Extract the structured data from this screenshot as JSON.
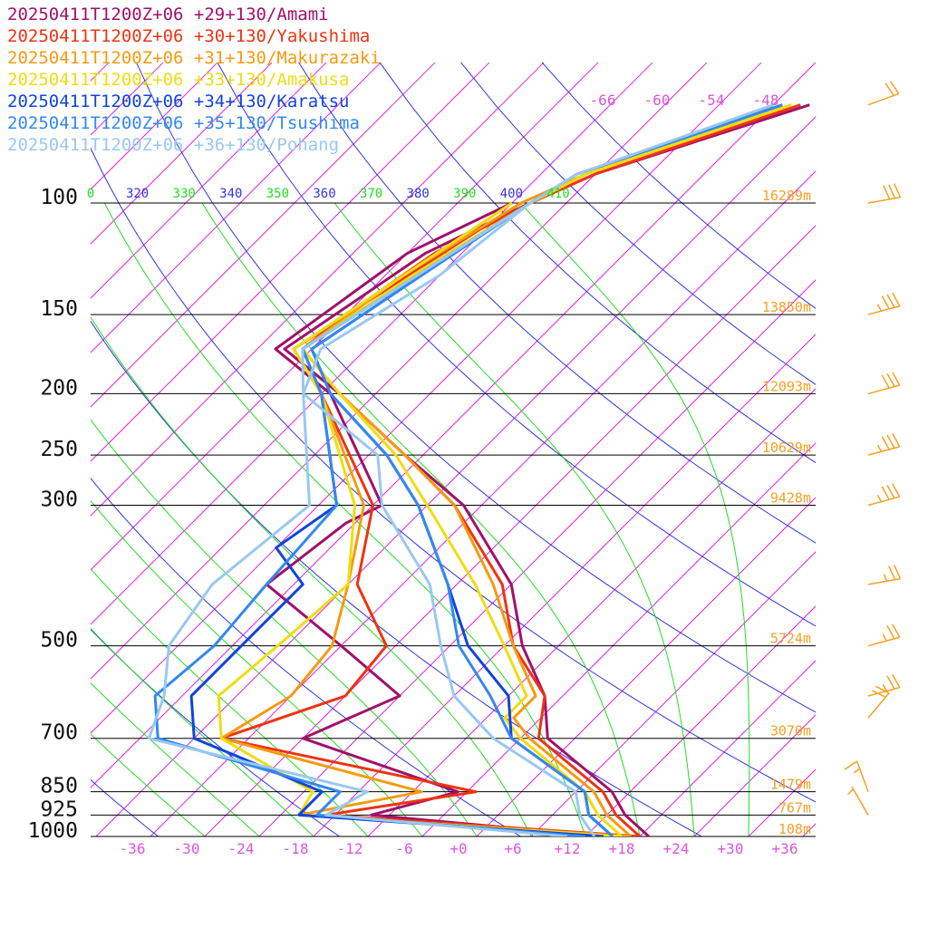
{
  "legend": [
    {
      "label": "20250411T1200Z+06 +29+130/Amami",
      "color": "#a0106a"
    },
    {
      "label": "20250411T1200Z+06 +30+130/Yakushima",
      "color": "#ee3311"
    },
    {
      "label": "20250411T1200Z+06 +31+130/Makurazaki",
      "color": "#f59a10"
    },
    {
      "label": "20250411T1200Z+06 +33+130/Amakusa",
      "color": "#eedd11"
    },
    {
      "label": "20250411T1200Z+06 +34+130/Karatsu",
      "color": "#1144dd"
    },
    {
      "label": "20250411T1200Z+06 +35+130/Tsushima",
      "color": "#3388ee"
    },
    {
      "label": "20250411T1200Z+06 +36+130/Pohang",
      "color": "#99c8f0"
    }
  ],
  "colors": {
    "isotherm": "#e022e0",
    "isotherm_label": "#dd55dd",
    "dry_adiabat": "#3333dd",
    "moist_adiabat": "#22dd22",
    "height_label": "#f5a020",
    "wind_barb": "#f5a020",
    "isobar": "#000000"
  },
  "chart_data": {
    "type": "line",
    "diagram": "skew-T",
    "x_ticks": [
      "-36",
      "-30",
      "-24",
      "-18",
      "-12",
      "-6",
      "+0",
      "+6",
      "+12",
      "+18",
      "+24",
      "+30",
      "+36"
    ],
    "pressure_levels": [
      "100",
      "150",
      "200",
      "250",
      "300",
      "500",
      "700",
      "850",
      "925",
      "1000"
    ],
    "height_labels": [
      {
        "p": 100,
        "text": "16289m"
      },
      {
        "p": 150,
        "text": "13850m"
      },
      {
        "p": 200,
        "text": "12093m"
      },
      {
        "p": 250,
        "text": "10629m"
      },
      {
        "p": 300,
        "text": "9428m"
      },
      {
        "p": 500,
        "text": "5724m"
      },
      {
        "p": 700,
        "text": "3070m"
      },
      {
        "p": 850,
        "text": "1479m"
      },
      {
        "p": 925,
        "text": "767m"
      },
      {
        "p": 1000,
        "text": "108m"
      }
    ],
    "upper_isotherm_labels": [
      "-66",
      "-60",
      "-54",
      "-48"
    ],
    "theta_labels": [
      {
        "text": "0",
        "type": "moist"
      },
      {
        "text": "320",
        "type": "dry"
      },
      {
        "text": "330",
        "type": "moist"
      },
      {
        "text": "340",
        "type": "dry"
      },
      {
        "text": "350",
        "type": "moist"
      },
      {
        "text": "360",
        "type": "dry"
      },
      {
        "text": "370",
        "type": "moist"
      },
      {
        "text": "380",
        "type": "dry"
      },
      {
        "text": "390",
        "type": "moist"
      },
      {
        "text": "400",
        "type": "dry"
      },
      {
        "text": "410",
        "type": "moist"
      }
    ],
    "series": [
      {
        "name": "20250411T1200Z+06 +29+130/Amami",
        "temperature": [
          [
            70,
            -42
          ],
          [
            90,
            -58
          ],
          [
            100,
            -62
          ],
          [
            120,
            -68
          ],
          [
            170,
            -73
          ],
          [
            200,
            -62
          ],
          [
            250,
            -48
          ],
          [
            300,
            -36
          ],
          [
            400,
            -22
          ],
          [
            500,
            -14
          ],
          [
            600,
            -6
          ],
          [
            700,
            -1
          ],
          [
            850,
            12
          ],
          [
            925,
            16
          ],
          [
            1000,
            21
          ]
        ],
        "dewpoint": [
          [
            100,
            -64
          ],
          [
            120,
            -70
          ],
          [
            170,
            -74
          ],
          [
            200,
            -63
          ],
          [
            300,
            -45
          ],
          [
            320,
            -47
          ],
          [
            400,
            -49
          ],
          [
            500,
            -34
          ],
          [
            600,
            -22
          ],
          [
            700,
            -28
          ],
          [
            850,
            -5
          ],
          [
            925,
            -12
          ],
          [
            1000,
            16
          ]
        ]
      },
      {
        "name": "20250411T1200Z+06 +30+130/Yakushima",
        "temperature": [
          [
            70,
            -43
          ],
          [
            90,
            -58
          ],
          [
            100,
            -62
          ],
          [
            120,
            -67
          ],
          [
            150,
            -70
          ],
          [
            170,
            -71
          ],
          [
            200,
            -62
          ],
          [
            250,
            -48
          ],
          [
            300,
            -37
          ],
          [
            400,
            -23
          ],
          [
            500,
            -15
          ],
          [
            600,
            -6
          ],
          [
            700,
            -2
          ],
          [
            850,
            11
          ],
          [
            925,
            15
          ],
          [
            1000,
            20
          ]
        ],
        "dewpoint": [
          [
            100,
            -63
          ],
          [
            170,
            -72
          ],
          [
            200,
            -64
          ],
          [
            300,
            -46
          ],
          [
            400,
            -39
          ],
          [
            500,
            -29
          ],
          [
            600,
            -28
          ],
          [
            700,
            -37
          ],
          [
            850,
            -3
          ],
          [
            925,
            -17
          ],
          [
            1000,
            20
          ]
        ]
      },
      {
        "name": "20250411T1200Z+06 +31+130/Makurazaki",
        "temperature": [
          [
            70,
            -44
          ],
          [
            90,
            -59
          ],
          [
            100,
            -63
          ],
          [
            130,
            -68
          ],
          [
            170,
            -71
          ],
          [
            200,
            -62
          ],
          [
            250,
            -48
          ],
          [
            300,
            -37
          ],
          [
            400,
            -24
          ],
          [
            500,
            -15
          ],
          [
            600,
            -7
          ],
          [
            650,
            -7
          ],
          [
            700,
            -3
          ],
          [
            850,
            10
          ],
          [
            925,
            14
          ],
          [
            1000,
            19
          ]
        ],
        "dewpoint": [
          [
            100,
            -64
          ],
          [
            170,
            -72
          ],
          [
            200,
            -64
          ],
          [
            300,
            -47
          ],
          [
            400,
            -40
          ],
          [
            500,
            -35
          ],
          [
            600,
            -34
          ],
          [
            700,
            -37
          ],
          [
            850,
            -9
          ],
          [
            925,
            -20
          ],
          [
            1000,
            19
          ]
        ]
      },
      {
        "name": "20250411T1200Z+06 +33+130/Amakusa",
        "temperature": [
          [
            70,
            -44
          ],
          [
            90,
            -59
          ],
          [
            100,
            -62
          ],
          [
            130,
            -67
          ],
          [
            170,
            -71
          ],
          [
            200,
            -62
          ],
          [
            250,
            -49
          ],
          [
            300,
            -40
          ],
          [
            400,
            -26
          ],
          [
            500,
            -16
          ],
          [
            600,
            -8
          ],
          [
            650,
            -8
          ],
          [
            700,
            -4
          ],
          [
            850,
            9
          ],
          [
            925,
            13
          ],
          [
            1000,
            18
          ]
        ],
        "dewpoint": [
          [
            100,
            -64
          ],
          [
            170,
            -72
          ],
          [
            200,
            -64
          ],
          [
            300,
            -48
          ],
          [
            400,
            -40
          ],
          [
            500,
            -41
          ],
          [
            600,
            -42
          ],
          [
            700,
            -37
          ],
          [
            850,
            -21
          ],
          [
            925,
            -20
          ],
          [
            1000,
            18
          ]
        ]
      },
      {
        "name": "20250411T1200Z+06 +34+130/Karatsu",
        "temperature": [
          [
            70,
            -45
          ],
          [
            90,
            -60
          ],
          [
            100,
            -62
          ],
          [
            130,
            -66
          ],
          [
            170,
            -70
          ],
          [
            200,
            -63
          ],
          [
            250,
            -50
          ],
          [
            300,
            -41
          ],
          [
            400,
            -29
          ],
          [
            500,
            -20
          ],
          [
            600,
            -10
          ],
          [
            700,
            -5
          ],
          [
            850,
            9
          ],
          [
            925,
            12
          ],
          [
            1000,
            17
          ]
        ],
        "dewpoint": [
          [
            100,
            -62
          ],
          [
            170,
            -71
          ],
          [
            200,
            -64
          ],
          [
            300,
            -50
          ],
          [
            350,
            -52
          ],
          [
            400,
            -45
          ],
          [
            500,
            -45
          ],
          [
            600,
            -45
          ],
          [
            700,
            -40
          ],
          [
            850,
            -20
          ],
          [
            925,
            -20
          ],
          [
            1000,
            16
          ]
        ]
      },
      {
        "name": "20250411T1200Z+06 +35+130/Tsushima",
        "temperature": [
          [
            70,
            -45
          ],
          [
            90,
            -60
          ],
          [
            100,
            -62
          ],
          [
            130,
            -66
          ],
          [
            170,
            -70
          ],
          [
            200,
            -63
          ],
          [
            250,
            -50
          ],
          [
            300,
            -41
          ],
          [
            400,
            -29
          ],
          [
            500,
            -21
          ],
          [
            600,
            -12
          ],
          [
            700,
            -5
          ],
          [
            850,
            9
          ],
          [
            925,
            12
          ],
          [
            1000,
            17
          ]
        ],
        "dewpoint": [
          [
            100,
            -62
          ],
          [
            170,
            -71
          ],
          [
            200,
            -64
          ],
          [
            300,
            -50
          ],
          [
            400,
            -49
          ],
          [
            500,
            -48
          ],
          [
            600,
            -49
          ],
          [
            700,
            -44
          ],
          [
            850,
            -18
          ],
          [
            925,
            -18
          ],
          [
            1000,
            14
          ]
        ]
      },
      {
        "name": "20250411T1200Z+06 +36+130/Pohang",
        "temperature": [
          [
            70,
            -46
          ],
          [
            90,
            -60
          ],
          [
            100,
            -62
          ],
          [
            130,
            -64
          ],
          [
            170,
            -69
          ],
          [
            200,
            -66
          ],
          [
            250,
            -51
          ],
          [
            300,
            -45
          ],
          [
            400,
            -31
          ],
          [
            500,
            -23
          ],
          [
            600,
            -16
          ],
          [
            700,
            -7
          ],
          [
            850,
            8
          ],
          [
            925,
            11
          ],
          [
            1000,
            15
          ]
        ],
        "dewpoint": [
          [
            100,
            -62
          ],
          [
            170,
            -71
          ],
          [
            200,
            -66
          ],
          [
            300,
            -53
          ],
          [
            400,
            -55
          ],
          [
            500,
            -53
          ],
          [
            600,
            -48
          ],
          [
            700,
            -45
          ],
          [
            850,
            -15
          ],
          [
            925,
            -17
          ],
          [
            1000,
            12
          ]
        ]
      }
    ],
    "wind_barbs": [
      {
        "p": 70,
        "speed_kt": 20,
        "dir_deg": 250
      },
      {
        "p": 100,
        "speed_kt": 30,
        "dir_deg": 260
      },
      {
        "p": 150,
        "speed_kt": 35,
        "dir_deg": 255
      },
      {
        "p": 200,
        "speed_kt": 30,
        "dir_deg": 255
      },
      {
        "p": 250,
        "speed_kt": 35,
        "dir_deg": 255
      },
      {
        "p": 300,
        "speed_kt": 35,
        "dir_deg": 255
      },
      {
        "p": 400,
        "speed_kt": 25,
        "dir_deg": 260
      },
      {
        "p": 500,
        "speed_kt": 25,
        "dir_deg": 255
      },
      {
        "p": 600,
        "speed_kt": 25,
        "dir_deg": 255
      },
      {
        "p": 650,
        "speed_kt": 20,
        "dir_deg": 220
      },
      {
        "p": 850,
        "speed_kt": 15,
        "dir_deg": 160
      },
      {
        "p": 925,
        "speed_kt": 5,
        "dir_deg": 150
      }
    ]
  }
}
